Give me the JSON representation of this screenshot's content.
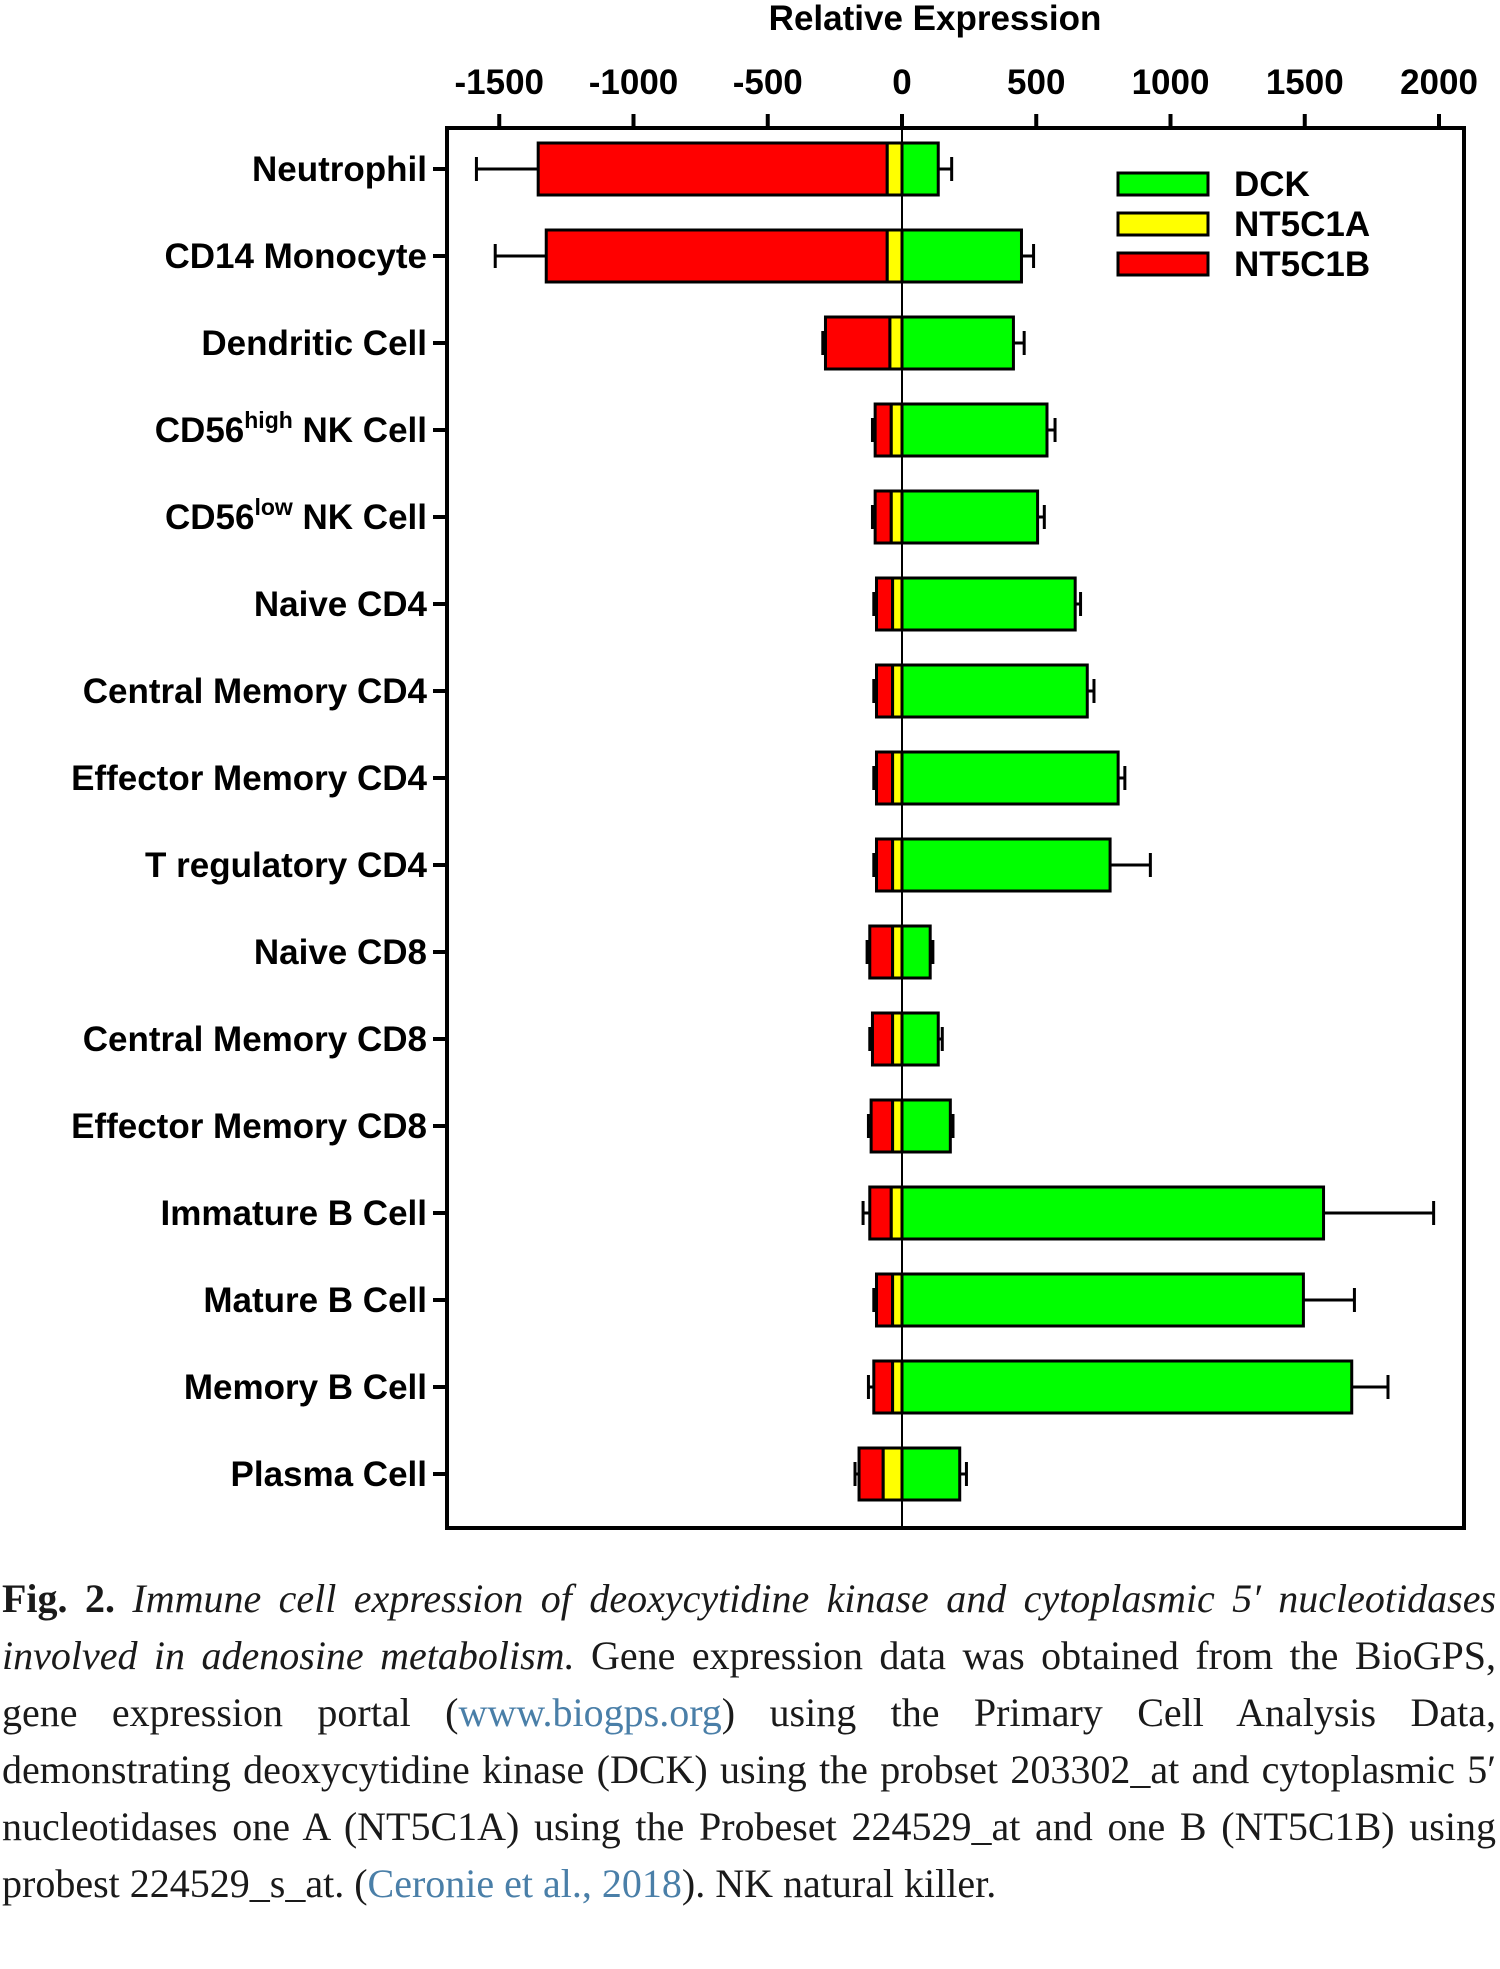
{
  "chart_data": {
    "type": "bar",
    "orientation": "horizontal",
    "stacking": "diverging",
    "title": "Relative Expression",
    "xlim": [
      -1700,
      2100
    ],
    "xticks": [
      -1500,
      -1000,
      -500,
      0,
      500,
      1000,
      1500,
      2000
    ],
    "tick_labels": [
      "-1500",
      "-1000",
      "-500",
      "0",
      "500",
      "1000",
      "1500",
      "2000"
    ],
    "legend_position": "top-right",
    "categories": [
      {
        "pre": "Neutrophil",
        "sup": "",
        "post": ""
      },
      {
        "pre": "CD14 Monocyte",
        "sup": "",
        "post": ""
      },
      {
        "pre": "Dendritic Cell",
        "sup": "",
        "post": ""
      },
      {
        "pre": "CD56",
        "sup": "high",
        "post": " NK Cell"
      },
      {
        "pre": "CD56",
        "sup": "low",
        "post": " NK Cell"
      },
      {
        "pre": "Naive CD4",
        "sup": "",
        "post": ""
      },
      {
        "pre": "Central Memory CD4",
        "sup": "",
        "post": ""
      },
      {
        "pre": "Effector Memory CD4",
        "sup": "",
        "post": ""
      },
      {
        "pre": "T regulatory CD4",
        "sup": "",
        "post": ""
      },
      {
        "pre": "Naive CD8",
        "sup": "",
        "post": ""
      },
      {
        "pre": "Central Memory CD8",
        "sup": "",
        "post": ""
      },
      {
        "pre": "Effector Memory CD8",
        "sup": "",
        "post": ""
      },
      {
        "pre": "Immature B  Cell",
        "sup": "",
        "post": ""
      },
      {
        "pre": "Mature B  Cell",
        "sup": "",
        "post": ""
      },
      {
        "pre": "Memory B  Cell",
        "sup": "",
        "post": ""
      },
      {
        "pre": "Plasma  Cell",
        "sup": "",
        "post": ""
      }
    ],
    "series": [
      {
        "name": "DCK",
        "color": "#00ff00",
        "direction": "positive",
        "values": [
          135,
          445,
          415,
          540,
          505,
          645,
          690,
          805,
          775,
          105,
          135,
          180,
          1570,
          1495,
          1675,
          215
        ],
        "error": [
          50,
          45,
          40,
          30,
          25,
          20,
          25,
          25,
          150,
          10,
          15,
          10,
          410,
          190,
          135,
          25
        ]
      },
      {
        "name": "NT5C1A",
        "color": "#ffff00",
        "direction": "negative",
        "values": [
          55,
          55,
          45,
          40,
          40,
          35,
          35,
          35,
          35,
          35,
          35,
          35,
          40,
          35,
          35,
          70
        ]
      },
      {
        "name": "NT5C1B",
        "color": "#ff0000",
        "direction": "negative",
        "values": [
          1300,
          1270,
          240,
          60,
          60,
          60,
          60,
          60,
          60,
          85,
          75,
          80,
          80,
          60,
          70,
          90
        ],
        "error": [
          230,
          190,
          10,
          10,
          10,
          10,
          10,
          10,
          10,
          10,
          10,
          10,
          25,
          10,
          20,
          15
        ]
      }
    ]
  },
  "caption": {
    "label": "Fig. 2.",
    "title": "Immune cell expression of deoxycytidine kinase and cytoplasmic 5′ nucleotidases involved in adenosine metabolism.",
    "text1": "Gene expression data was obtained from the BioGPS, gene expression portal (",
    "link1": "www.biogps.org",
    "text2": ") using the Primary Cell Analysis Data, demonstrating deoxycytidine kinase (DCK) using the probset 203302_at and cytoplasmic 5′ nucleotidases one A (NT5C1A) using the Probeset 224529_at and one B (NT5C1B) using probest 224529_s_at. (",
    "link2": "Ceronie et al., 2018",
    "text3": "). NK natural killer."
  }
}
